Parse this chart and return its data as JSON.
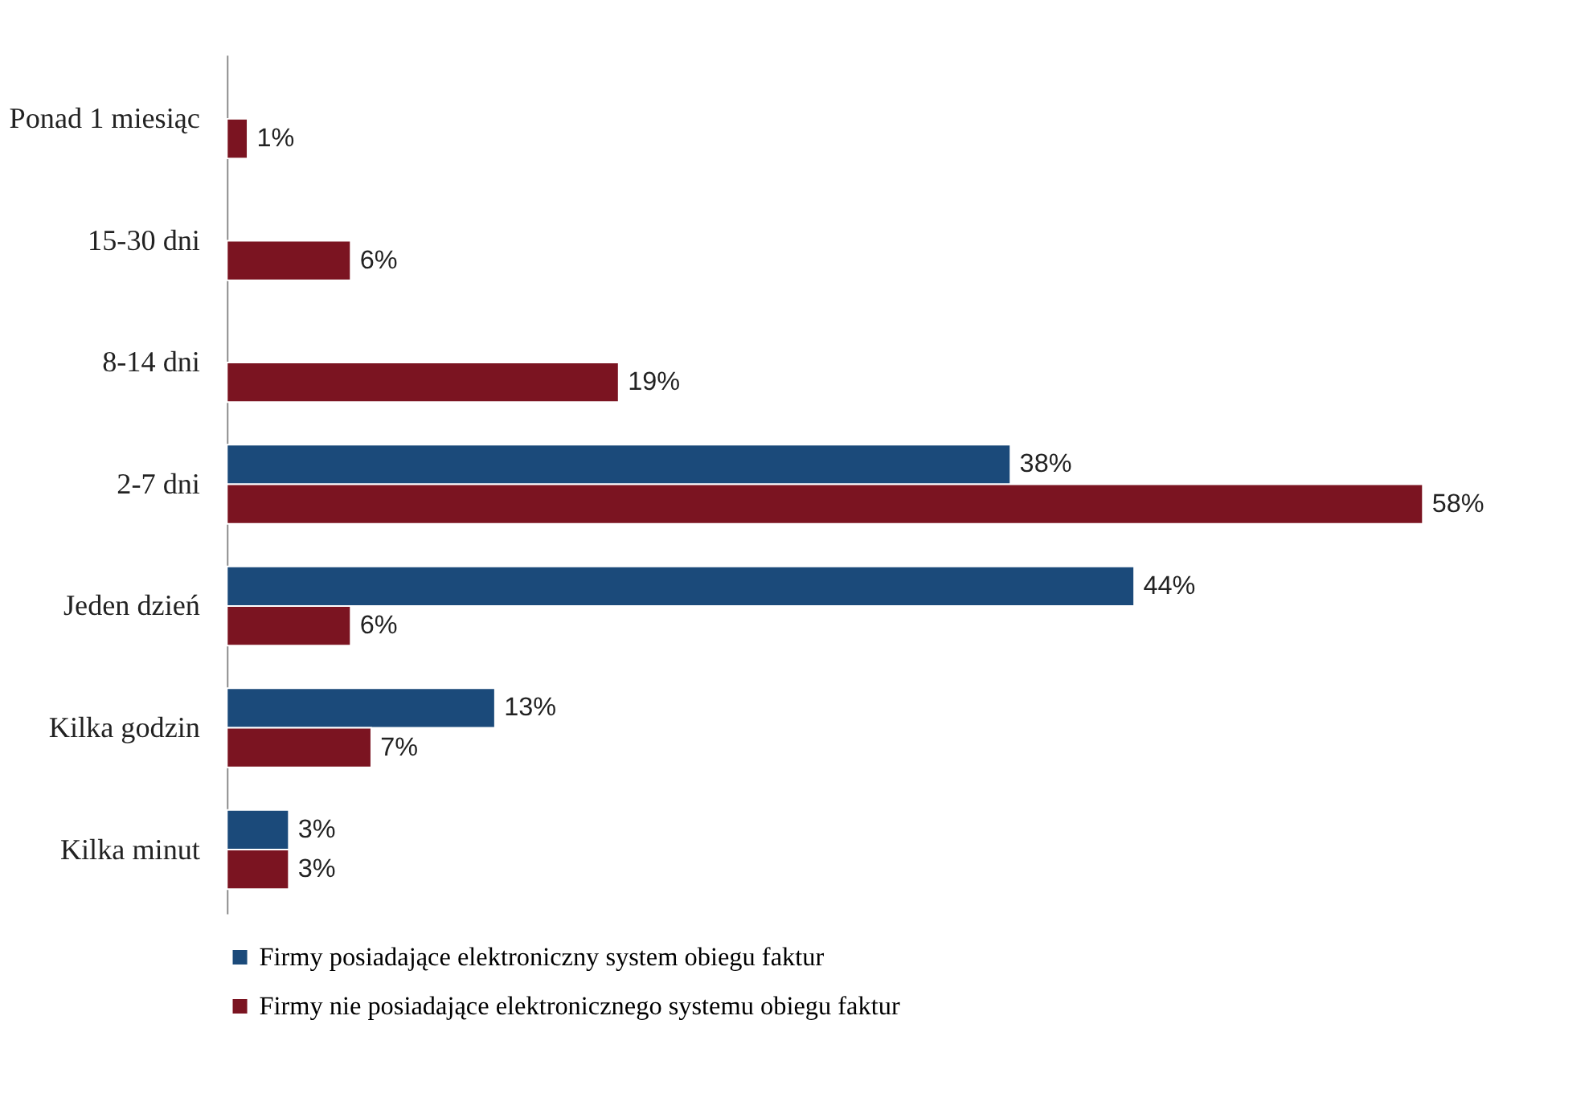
{
  "chart_data": {
    "type": "bar",
    "orientation": "horizontal",
    "categories": [
      "Ponad 1 miesiąc",
      "15-30 dni",
      "8-14 dni",
      "2-7 dni",
      "Jeden dzień",
      "Kilka godzin",
      "Kilka minut"
    ],
    "series": [
      {
        "name": "Firmy posiadające elektroniczny system obiegu faktur",
        "color": "#1b4a7a",
        "values": [
          null,
          null,
          null,
          38,
          44,
          13,
          3
        ],
        "value_labels": [
          null,
          null,
          null,
          "38%",
          "44%",
          "13%",
          "3%"
        ]
      },
      {
        "name": "Firmy nie posiadające elektronicznego systemu obiegu faktur",
        "color": "#7b1421",
        "values": [
          1,
          6,
          19,
          58,
          6,
          7,
          3
        ],
        "value_labels": [
          "1%",
          "6%",
          "19%",
          "58%",
          "6%",
          "7%",
          "3%"
        ]
      }
    ],
    "legend": "bottom",
    "grid": false
  }
}
